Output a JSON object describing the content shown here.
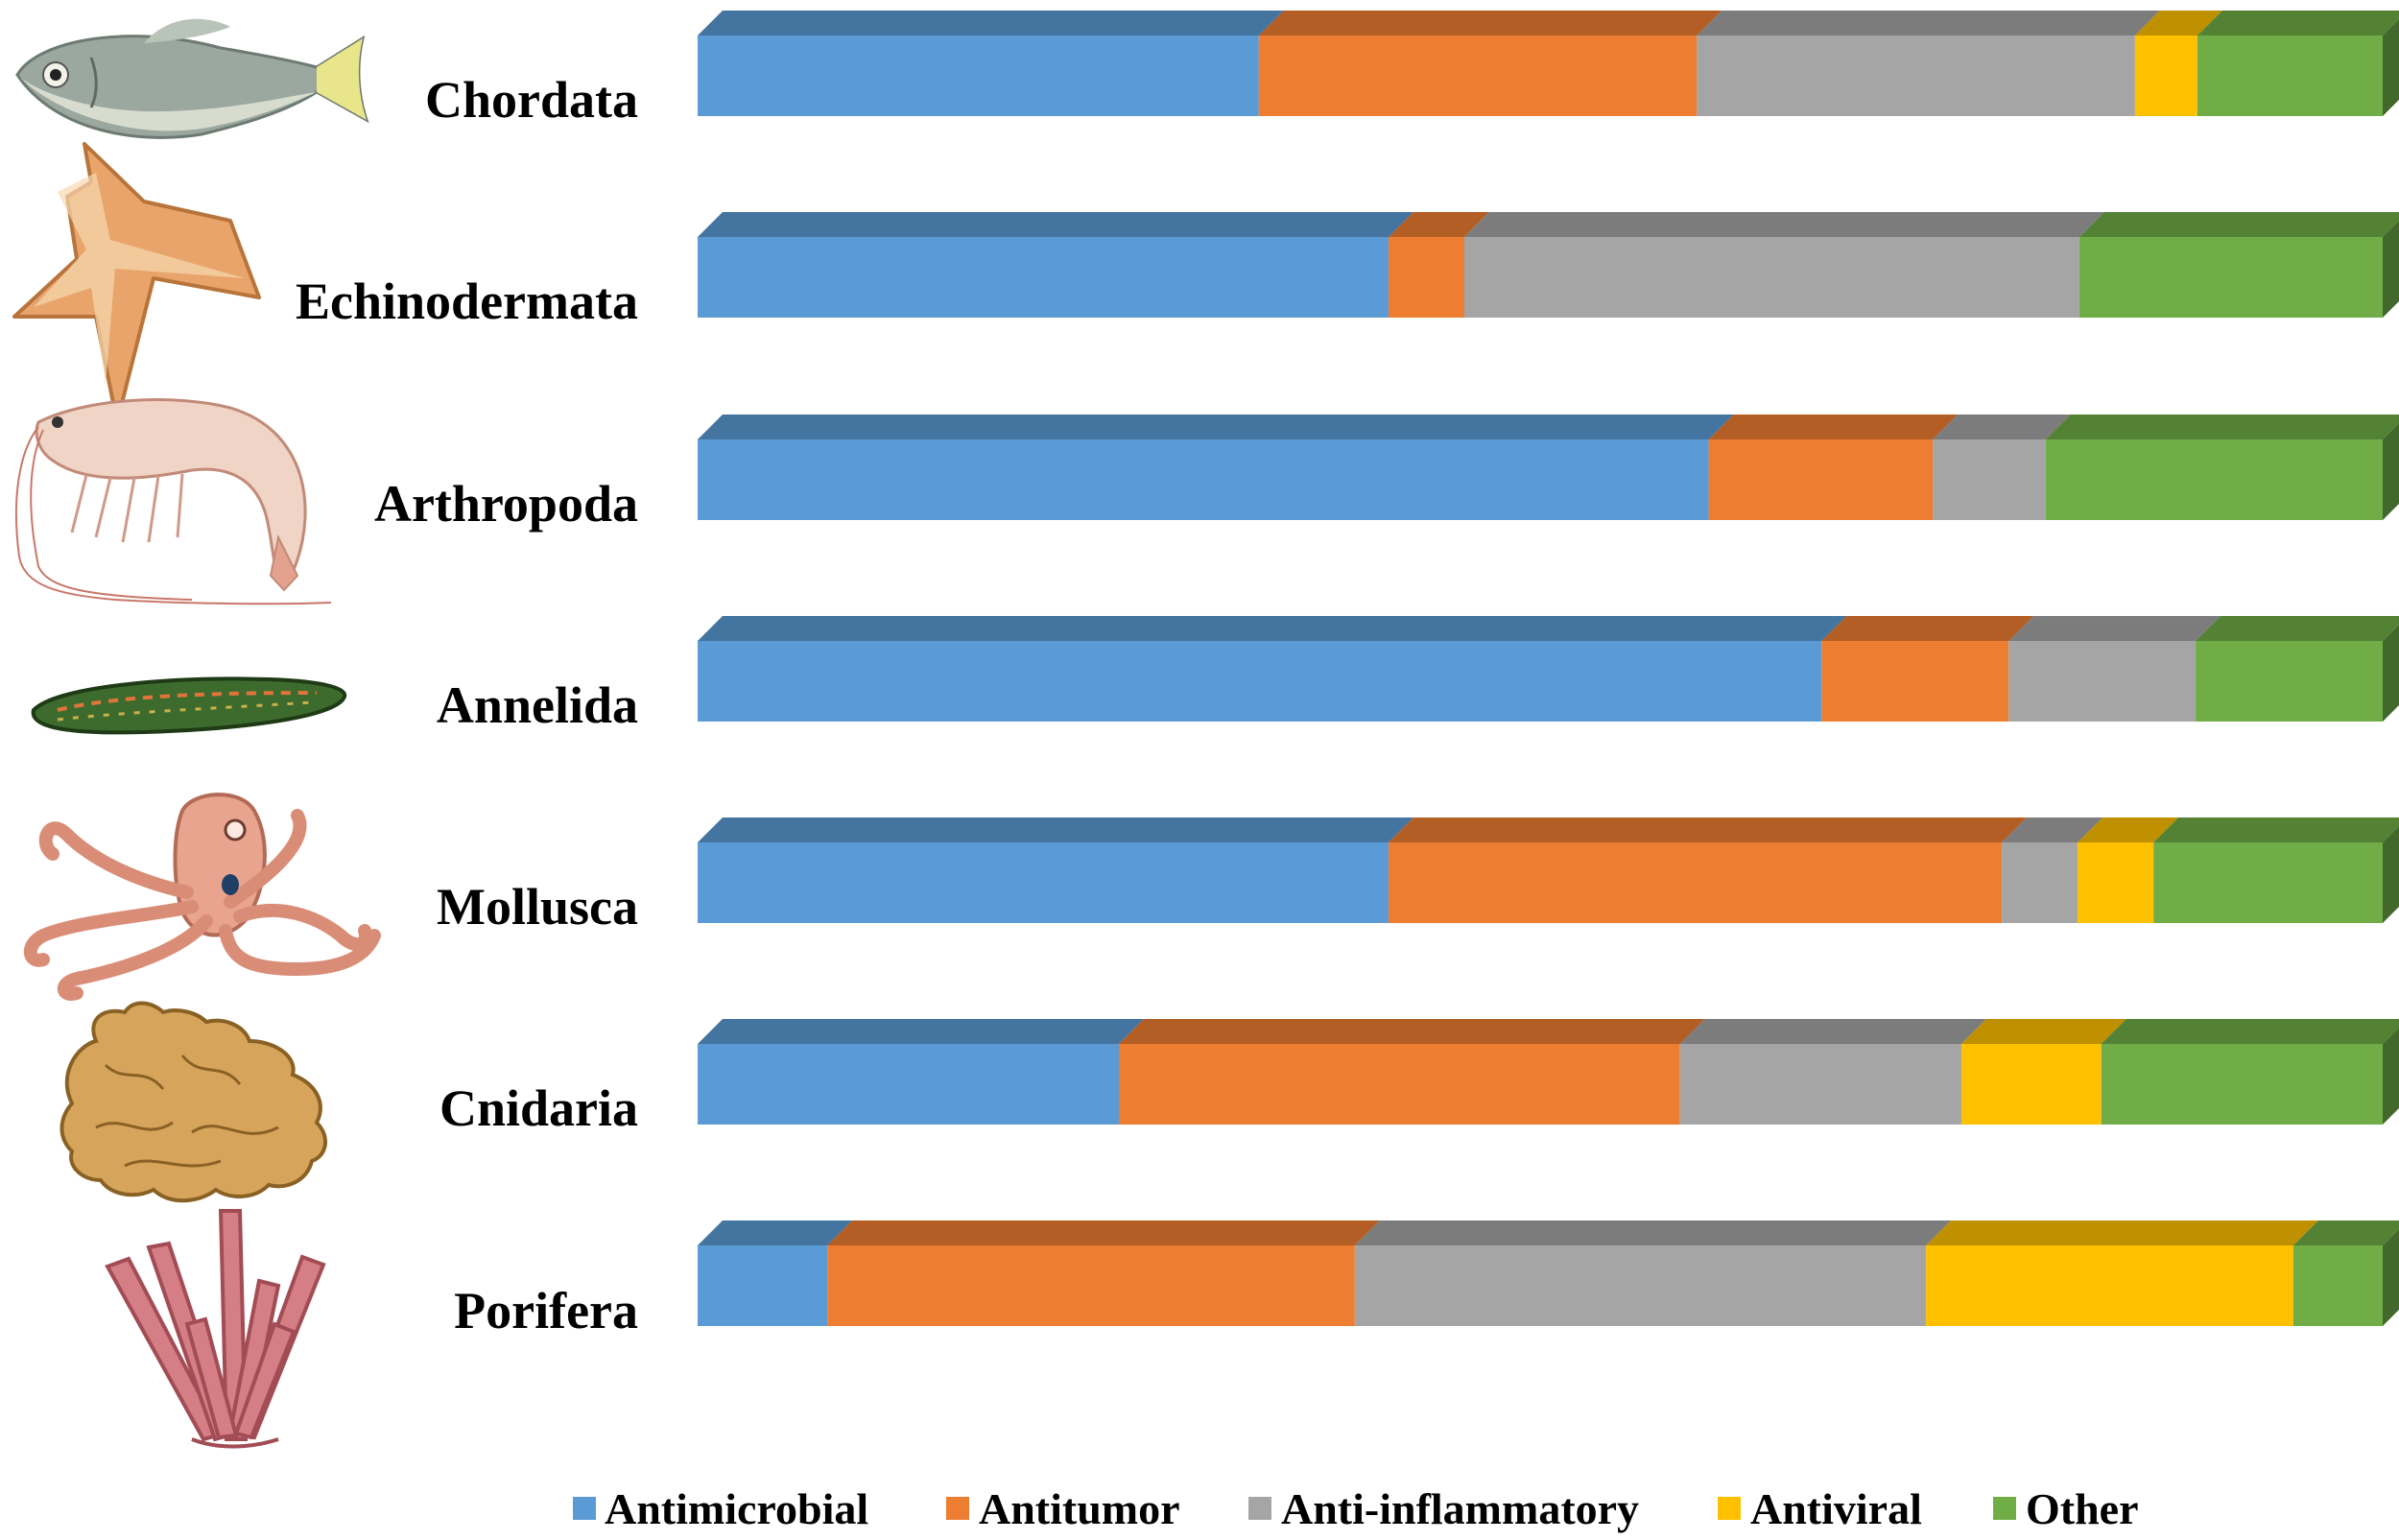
{
  "chart_data": {
    "type": "bar",
    "orientation": "horizontal",
    "stacked": "100%",
    "style": "3d",
    "grid": false,
    "legend_position": "bottom",
    "categories": [
      "Chordata",
      "Echinodermata",
      "Arthropoda",
      "Annelida",
      "Mollusca",
      "Cnidaria",
      "Porifera"
    ],
    "series": [
      {
        "name": "Antimicrobial",
        "color": "#5B9BD5",
        "values": [
          33.3,
          41.0,
          60.0,
          66.7,
          41.0,
          25.0,
          7.7
        ]
      },
      {
        "name": "Antitumor",
        "color": "#ED7D31",
        "values": [
          26.0,
          4.5,
          13.3,
          11.1,
          36.4,
          33.3,
          31.3
        ]
      },
      {
        "name": "Anti-inflammatory",
        "color": "#A5A5A5",
        "values": [
          26.0,
          36.5,
          6.7,
          11.1,
          4.5,
          16.7,
          33.9
        ]
      },
      {
        "name": "Antiviral",
        "color": "#FFC000",
        "values": [
          3.7,
          0.0,
          0.0,
          0.0,
          4.5,
          8.3,
          21.8
        ]
      },
      {
        "name": "Other",
        "color": "#70AD47",
        "values": [
          11.0,
          18.0,
          20.0,
          11.1,
          13.6,
          16.7,
          5.3
        ]
      }
    ],
    "xlim": [
      0,
      100
    ],
    "title": "",
    "xlabel": "",
    "ylabel": "",
    "icons": [
      "fish-icon",
      "starfish-icon",
      "shrimp-icon",
      "leech-icon",
      "octopus-icon",
      "coral-icon",
      "sponge-icon"
    ]
  }
}
